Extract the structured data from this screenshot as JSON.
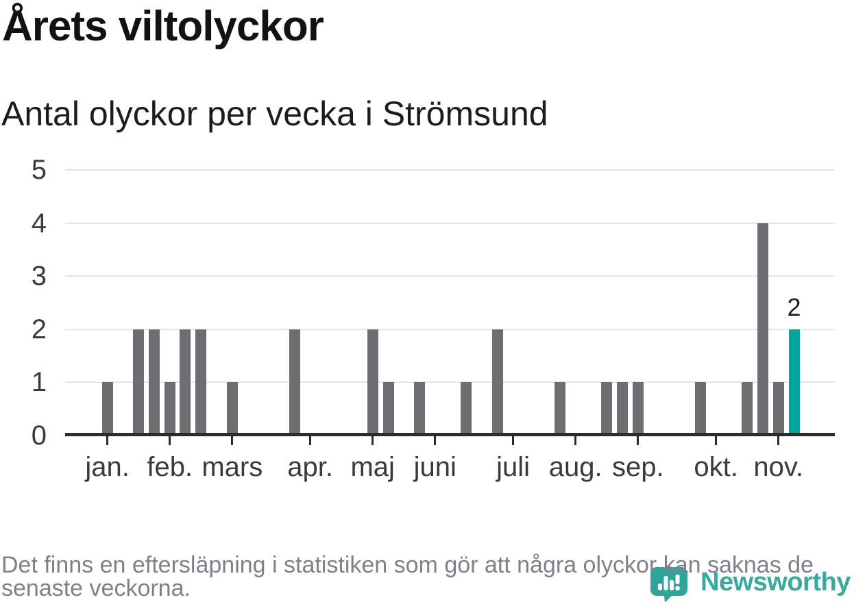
{
  "header": {
    "title": "Årets viltolyckor",
    "subtitle": "Antal olyckor per vecka i Strömsund"
  },
  "footer": {
    "note": "Det finns en eftersläpning i statistiken som gör att några olyckor kan saknas de senaste veckorna."
  },
  "branding": {
    "wordmark": "Newsworthy",
    "icon": "newsworthy-speech-bubble-bar-chart-icon",
    "color": "#3aa89e"
  },
  "chart_data": {
    "type": "bar",
    "title": "Årets viltolyckor",
    "subtitle": "Antal olyckor per vecka i Strömsund",
    "x_unit": "vecka (ISO week of year)",
    "ylim": [
      0,
      5
    ],
    "y_ticks": [
      0,
      1,
      2,
      3,
      4,
      5
    ],
    "grid": true,
    "legend": false,
    "bar_color": "#6d6d72",
    "highlight_color": "#00a59c",
    "month_ticks": [
      {
        "label": "jan.",
        "week": 1
      },
      {
        "label": "feb.",
        "week": 5
      },
      {
        "label": "mars",
        "week": 9
      },
      {
        "label": "apr.",
        "week": 14
      },
      {
        "label": "maj",
        "week": 18
      },
      {
        "label": "juni",
        "week": 22
      },
      {
        "label": "juli",
        "week": 27
      },
      {
        "label": "aug.",
        "week": 31
      },
      {
        "label": "sep.",
        "week": 35
      },
      {
        "label": "okt.",
        "week": 40
      },
      {
        "label": "nov.",
        "week": 44
      }
    ],
    "bars": [
      {
        "week": 1,
        "value": 1
      },
      {
        "week": 3,
        "value": 2
      },
      {
        "week": 4,
        "value": 2
      },
      {
        "week": 5,
        "value": 1
      },
      {
        "week": 6,
        "value": 2
      },
      {
        "week": 7,
        "value": 2
      },
      {
        "week": 9,
        "value": 1
      },
      {
        "week": 13,
        "value": 2
      },
      {
        "week": 18,
        "value": 2
      },
      {
        "week": 19,
        "value": 1
      },
      {
        "week": 21,
        "value": 1
      },
      {
        "week": 24,
        "value": 1
      },
      {
        "week": 26,
        "value": 2
      },
      {
        "week": 30,
        "value": 1
      },
      {
        "week": 33,
        "value": 1
      },
      {
        "week": 34,
        "value": 1
      },
      {
        "week": 35,
        "value": 1
      },
      {
        "week": 39,
        "value": 1
      },
      {
        "week": 42,
        "value": 1
      },
      {
        "week": 43,
        "value": 4
      },
      {
        "week": 44,
        "value": 1
      },
      {
        "week": 45,
        "value": 2,
        "highlight": true,
        "label": "2"
      }
    ]
  }
}
